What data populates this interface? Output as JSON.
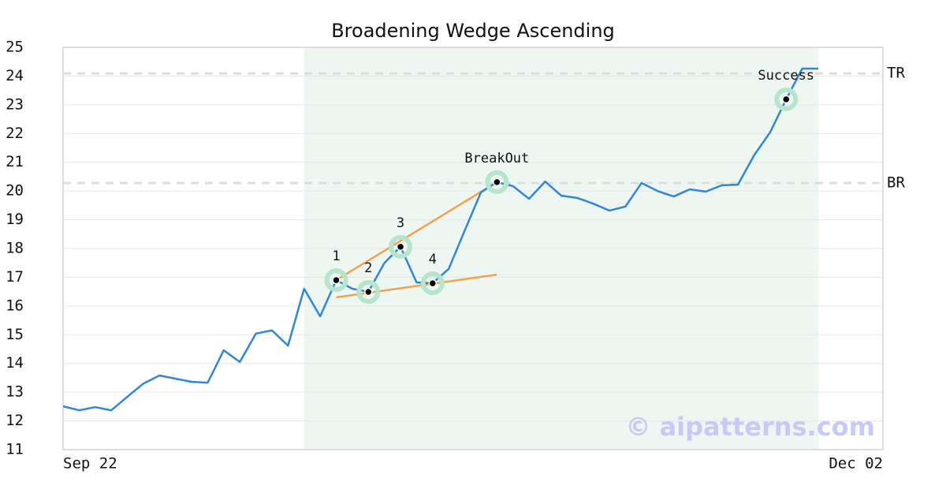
{
  "chart_data": {
    "type": "line",
    "title": "Broadening Wedge Ascending",
    "categories": [
      "Sep 22",
      null,
      null,
      null,
      null,
      null,
      null,
      null,
      null,
      null,
      null,
      null,
      null,
      null,
      null,
      null,
      null,
      null,
      null,
      null,
      null,
      null,
      null,
      null,
      null,
      null,
      null,
      null,
      null,
      null,
      null,
      null,
      null,
      null,
      null,
      null,
      null,
      null,
      null,
      null,
      null,
      null,
      null,
      null,
      null,
      null,
      null,
      "Dec 02"
    ],
    "series": [
      {
        "color": "#2e86de",
        "values": [
          12.51,
          12.37,
          12.48,
          12.37,
          12.84,
          13.3,
          13.58,
          13.47,
          13.36,
          13.33,
          14.46,
          14.05,
          15.04,
          15.15,
          14.62,
          16.6,
          15.64,
          16.9,
          16.6,
          16.49,
          17.5,
          18.06,
          16.82,
          16.79,
          17.29,
          18.63,
          19.95,
          20.31,
          20.17,
          19.73,
          20.33,
          19.84,
          19.76,
          19.56,
          19.32,
          19.46,
          20.28,
          20.0,
          19.81,
          20.06,
          19.98,
          20.2,
          20.22,
          21.24,
          22.04,
          23.19,
          24.26,
          24.26
        ]
      }
    ],
    "ylim": [
      11,
      25
    ],
    "yticks": [
      11,
      12,
      13,
      14,
      15,
      16,
      17,
      18,
      19,
      20,
      21,
      22,
      23,
      24,
      25
    ],
    "grid": true,
    "shade": {
      "start": 15,
      "end": 47,
      "color": "#eef6f2"
    },
    "levels": [
      {
        "label": "TR",
        "value": 24.09
      },
      {
        "label": "BR",
        "value": 20.28
      }
    ],
    "points": [
      {
        "label": "1",
        "index": 17,
        "value": 16.9
      },
      {
        "label": "2",
        "index": 19,
        "value": 16.49
      },
      {
        "label": "3",
        "index": 21,
        "value": 18.06
      },
      {
        "label": "4",
        "index": 23,
        "value": 16.79
      },
      {
        "label": "BreakOut",
        "index": 27,
        "value": 20.31
      },
      {
        "label": "Success",
        "index": 45,
        "value": 23.19
      }
    ],
    "trendlines": [
      {
        "color": "#f4a04a",
        "x": [
          17,
          27
        ],
        "y": [
          16.9,
          20.31
        ]
      },
      {
        "color": "#f4a04a",
        "x": [
          17,
          27
        ],
        "y": [
          16.3,
          17.09
        ]
      }
    ],
    "watermark": "© aipatterns.com"
  }
}
